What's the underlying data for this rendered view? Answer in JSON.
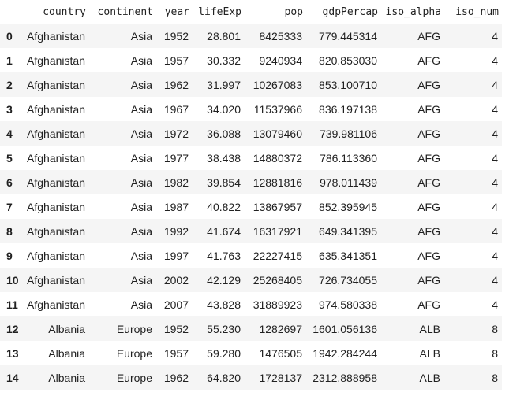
{
  "dataframe": {
    "columns": [
      "",
      "country",
      "continent",
      "year",
      "lifeExp",
      "pop",
      "gdpPercap",
      "iso_alpha",
      "iso_num"
    ],
    "rows": [
      {
        "index": "0",
        "country": "Afghanistan",
        "continent": "Asia",
        "year": "1952",
        "lifeExp": "28.801",
        "pop": "8425333",
        "gdpPercap": "779.445314",
        "iso_alpha": "AFG",
        "iso_num": "4"
      },
      {
        "index": "1",
        "country": "Afghanistan",
        "continent": "Asia",
        "year": "1957",
        "lifeExp": "30.332",
        "pop": "9240934",
        "gdpPercap": "820.853030",
        "iso_alpha": "AFG",
        "iso_num": "4"
      },
      {
        "index": "2",
        "country": "Afghanistan",
        "continent": "Asia",
        "year": "1962",
        "lifeExp": "31.997",
        "pop": "10267083",
        "gdpPercap": "853.100710",
        "iso_alpha": "AFG",
        "iso_num": "4"
      },
      {
        "index": "3",
        "country": "Afghanistan",
        "continent": "Asia",
        "year": "1967",
        "lifeExp": "34.020",
        "pop": "11537966",
        "gdpPercap": "836.197138",
        "iso_alpha": "AFG",
        "iso_num": "4"
      },
      {
        "index": "4",
        "country": "Afghanistan",
        "continent": "Asia",
        "year": "1972",
        "lifeExp": "36.088",
        "pop": "13079460",
        "gdpPercap": "739.981106",
        "iso_alpha": "AFG",
        "iso_num": "4"
      },
      {
        "index": "5",
        "country": "Afghanistan",
        "continent": "Asia",
        "year": "1977",
        "lifeExp": "38.438",
        "pop": "14880372",
        "gdpPercap": "786.113360",
        "iso_alpha": "AFG",
        "iso_num": "4"
      },
      {
        "index": "6",
        "country": "Afghanistan",
        "continent": "Asia",
        "year": "1982",
        "lifeExp": "39.854",
        "pop": "12881816",
        "gdpPercap": "978.011439",
        "iso_alpha": "AFG",
        "iso_num": "4"
      },
      {
        "index": "7",
        "country": "Afghanistan",
        "continent": "Asia",
        "year": "1987",
        "lifeExp": "40.822",
        "pop": "13867957",
        "gdpPercap": "852.395945",
        "iso_alpha": "AFG",
        "iso_num": "4"
      },
      {
        "index": "8",
        "country": "Afghanistan",
        "continent": "Asia",
        "year": "1992",
        "lifeExp": "41.674",
        "pop": "16317921",
        "gdpPercap": "649.341395",
        "iso_alpha": "AFG",
        "iso_num": "4"
      },
      {
        "index": "9",
        "country": "Afghanistan",
        "continent": "Asia",
        "year": "1997",
        "lifeExp": "41.763",
        "pop": "22227415",
        "gdpPercap": "635.341351",
        "iso_alpha": "AFG",
        "iso_num": "4"
      },
      {
        "index": "10",
        "country": "Afghanistan",
        "continent": "Asia",
        "year": "2002",
        "lifeExp": "42.129",
        "pop": "25268405",
        "gdpPercap": "726.734055",
        "iso_alpha": "AFG",
        "iso_num": "4"
      },
      {
        "index": "11",
        "country": "Afghanistan",
        "continent": "Asia",
        "year": "2007",
        "lifeExp": "43.828",
        "pop": "31889923",
        "gdpPercap": "974.580338",
        "iso_alpha": "AFG",
        "iso_num": "4"
      },
      {
        "index": "12",
        "country": "Albania",
        "continent": "Europe",
        "year": "1952",
        "lifeExp": "55.230",
        "pop": "1282697",
        "gdpPercap": "1601.056136",
        "iso_alpha": "ALB",
        "iso_num": "8"
      },
      {
        "index": "13",
        "country": "Albania",
        "continent": "Europe",
        "year": "1957",
        "lifeExp": "59.280",
        "pop": "1476505",
        "gdpPercap": "1942.284244",
        "iso_alpha": "ALB",
        "iso_num": "8"
      },
      {
        "index": "14",
        "country": "Albania",
        "continent": "Europe",
        "year": "1962",
        "lifeExp": "64.820",
        "pop": "1728137",
        "gdpPercap": "2312.888958",
        "iso_alpha": "ALB",
        "iso_num": "8"
      }
    ]
  },
  "colors": {
    "text": "#212121",
    "stripe": "#f5f5f5",
    "background": "#ffffff"
  }
}
